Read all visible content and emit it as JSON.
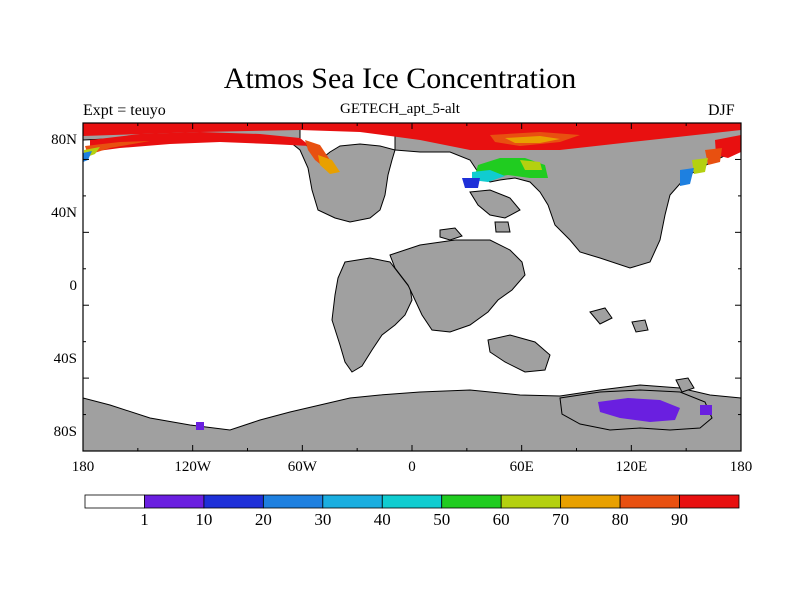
{
  "header": {
    "title": "Atmos Sea Ice Concentration",
    "subtitle": "GETECH_apt_5-alt",
    "left_label": "Expt = teuyo",
    "right_label": "DJF"
  },
  "axes": {
    "lat_labels": [
      "80N",
      "40N",
      "0",
      "40S",
      "80S"
    ],
    "lon_labels": [
      "180",
      "120W",
      "60W",
      "0",
      "60E",
      "120E",
      "180"
    ]
  },
  "colorbar": {
    "labels": [
      "1",
      "10",
      "20",
      "30",
      "40",
      "50",
      "60",
      "70",
      "80",
      "90"
    ],
    "colors": [
      "#ffffff",
      "#6a1fe0",
      "#1e30d8",
      "#1e80e0",
      "#1aaee0",
      "#10ccd0",
      "#20cc20",
      "#b4d010",
      "#e8a000",
      "#e85010",
      "#e81010"
    ]
  },
  "colors": {
    "land": "#a0a0a0",
    "ocean": "#ffffff",
    "coast": "#000000"
  }
}
